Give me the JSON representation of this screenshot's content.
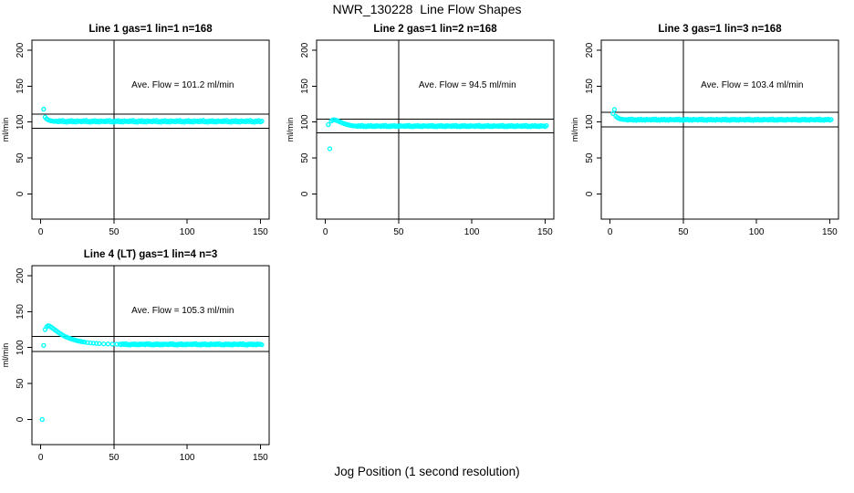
{
  "header": {
    "title": "NWR_130228  Line Flow Shapes"
  },
  "footer": {
    "xlabel": "Jog Position (1 second resolution)"
  },
  "colors": {
    "point": "#00FFFF",
    "axis": "#000000",
    "background": "#FFFFFF"
  },
  "chart_data": {
    "type": "scatter",
    "title": "NWR_130228  Line Flow Shapes",
    "xlabel": "Jog Position (1 second resolution)",
    "ylabel": "ml/min",
    "legend": "none",
    "grid": "off",
    "axes": {
      "xlim": [
        -6,
        156
      ],
      "ylim": [
        -35,
        214
      ],
      "xticks": [
        0,
        50,
        100,
        150
      ],
      "yticks": [
        0,
        50,
        100,
        150,
        200
      ],
      "ylab": "ml/min"
    },
    "annotation_pos": {
      "x": 97,
      "y": 152
    },
    "noise_cycle": [
      0.4,
      -0.7,
      1.0,
      -0.3,
      1.3,
      -0.9,
      0.1,
      -1.2,
      0.7,
      -0.4,
      1.1,
      -0.8,
      0.3,
      -1.0,
      0.9,
      -0.2
    ],
    "panels": [
      {
        "name": "line1",
        "title": "Line 1 gas=1 lin=1 n=168",
        "ave_flow": 101.2,
        "annotation": "Ave. Flow =  101.2  ml/min",
        "vline_x": 50,
        "hlines": [
          111.3,
          91.1
        ],
        "row": 0,
        "col": 0,
        "transient_points": [
          [
            2,
            118
          ],
          [
            3,
            107
          ],
          [
            4,
            104.5
          ],
          [
            5,
            103.2
          ],
          [
            6,
            102.3
          ],
          [
            7,
            101.8
          ],
          [
            8,
            101.4
          ],
          [
            9,
            101.1
          ],
          [
            10,
            100.9
          ]
        ],
        "flat_band": {
          "x_from": 11,
          "x_to": 151,
          "step": 1,
          "base": 101.0,
          "noise_scale": 1.0
        }
      },
      {
        "name": "line2",
        "title": "Line 2 gas=1 lin=2 n=168",
        "ave_flow": 94.5,
        "annotation": "Ave. Flow =  94.5  ml/min",
        "vline_x": 50,
        "hlines": [
          104.0,
          85.1
        ],
        "row": 0,
        "col": 1,
        "transient_points": [
          [
            2,
            96.5
          ],
          [
            3,
            63
          ],
          [
            4,
            101.5
          ],
          [
            5,
            103
          ],
          [
            6,
            103.3
          ],
          [
            7,
            102.8
          ],
          [
            8,
            102
          ],
          [
            9,
            101.2
          ],
          [
            10,
            100.3
          ],
          [
            11,
            99.4
          ],
          [
            12,
            98.5
          ],
          [
            13,
            97.7
          ],
          [
            14,
            97
          ],
          [
            15,
            96.4
          ],
          [
            16,
            95.9
          ],
          [
            17,
            95.5
          ],
          [
            18,
            95.1
          ],
          [
            19,
            94.8
          ],
          [
            20,
            94.6
          ]
        ],
        "flat_band": {
          "x_from": 21,
          "x_to": 151,
          "step": 1,
          "base": 94.4,
          "noise_scale": 0.8
        }
      },
      {
        "name": "line3",
        "title": "Line 3 gas=1 lin=3 n=168",
        "ave_flow": 103.4,
        "annotation": "Ave. Flow =  103.4  ml/min",
        "vline_x": 50,
        "hlines": [
          113.7,
          93.1
        ],
        "row": 0,
        "col": 2,
        "transient_points": [
          [
            2,
            112
          ],
          [
            3,
            117.5
          ],
          [
            4,
            108
          ],
          [
            5,
            106.3
          ],
          [
            6,
            105.2
          ],
          [
            7,
            104.5
          ],
          [
            8,
            104
          ],
          [
            9,
            103.7
          ],
          [
            10,
            103.5
          ]
        ],
        "flat_band": {
          "x_from": 11,
          "x_to": 151,
          "step": 1,
          "base": 103.3,
          "noise_scale": 0.8
        }
      },
      {
        "name": "line4",
        "title": "Line 4 (LT) gas=1 lin=4 n=3",
        "ave_flow": 105.3,
        "annotation": "Ave. Flow =  105.3  ml/min",
        "vline_x": 50,
        "hlines": [
          115.8,
          94.8
        ],
        "row": 1,
        "col": 0,
        "transient_points": [
          [
            1,
            0
          ],
          [
            2,
            103
          ],
          [
            3,
            125
          ],
          [
            4,
            128.8
          ],
          [
            5,
            130.4
          ],
          [
            6,
            130
          ],
          [
            7,
            128.7
          ],
          [
            8,
            127.2
          ],
          [
            9,
            125.7
          ],
          [
            10,
            124.2
          ],
          [
            11,
            122.7
          ],
          [
            12,
            121.2
          ],
          [
            13,
            119.8
          ],
          [
            14,
            118.5
          ],
          [
            15,
            117.3
          ],
          [
            16,
            116.2
          ],
          [
            17,
            115.2
          ],
          [
            18,
            114.3
          ],
          [
            19,
            113.5
          ],
          [
            20,
            112.7
          ],
          [
            21,
            112
          ],
          [
            22,
            111.3
          ],
          [
            23,
            110.7
          ],
          [
            24,
            110.1
          ],
          [
            25,
            109.6
          ],
          [
            26,
            109.1
          ],
          [
            27,
            108.7
          ],
          [
            28,
            108.3
          ],
          [
            29,
            107.9
          ],
          [
            30,
            107.6
          ],
          [
            32,
            107
          ],
          [
            34,
            106.5
          ],
          [
            36,
            106.1
          ],
          [
            38,
            105.8
          ],
          [
            40,
            105.5
          ],
          [
            43,
            105.2
          ],
          [
            46,
            105
          ],
          [
            49,
            104.8
          ],
          [
            52,
            104.7
          ]
        ],
        "flat_band": {
          "x_from": 54,
          "x_to": 151,
          "step": 1,
          "base": 104.5,
          "noise_scale": 0.8
        }
      }
    ]
  }
}
